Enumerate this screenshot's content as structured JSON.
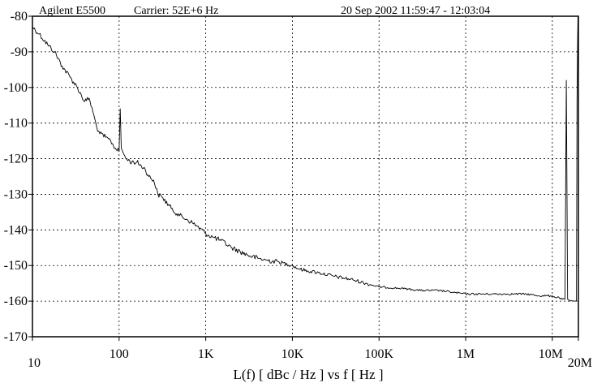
{
  "header": {
    "instrument": "Agilent E5500",
    "carrier": "Carrier: 52E+6 Hz",
    "datetime": "20 Sep 2002  11:59:47 - 12:03:04"
  },
  "chart_data": {
    "type": "line",
    "xlabel": "L(f)  [ dBc / Hz ]  vs  f  [ Hz ]",
    "ylabel": "",
    "x_scale": "log",
    "xlim": [
      10,
      20000000
    ],
    "ylim": [
      -170,
      -80
    ],
    "grid": true,
    "x_ticks": [
      {
        "value": 10,
        "label": "10"
      },
      {
        "value": 100,
        "label": "100"
      },
      {
        "value": 1000,
        "label": "1K"
      },
      {
        "value": 10000,
        "label": "10K"
      },
      {
        "value": 100000,
        "label": "100K"
      },
      {
        "value": 1000000,
        "label": "1M"
      },
      {
        "value": 10000000,
        "label": "10M"
      },
      {
        "value": 20000000,
        "label": "20M"
      }
    ],
    "y_ticks": [
      {
        "value": -80,
        "label": "-80"
      },
      {
        "value": -90,
        "label": "-90"
      },
      {
        "value": -100,
        "label": "-100"
      },
      {
        "value": -110,
        "label": "-110"
      },
      {
        "value": -120,
        "label": "-120"
      },
      {
        "value": -130,
        "label": "-130"
      },
      {
        "value": -140,
        "label": "-140"
      },
      {
        "value": -150,
        "label": "-150"
      },
      {
        "value": -160,
        "label": "-160"
      },
      {
        "value": -170,
        "label": "-170"
      }
    ],
    "series": [
      {
        "color": "#000000",
        "x": [
          10,
          12,
          15,
          18,
          22,
          27,
          33,
          40,
          45,
          50,
          55,
          60,
          70,
          80,
          90,
          100,
          103,
          106,
          110,
          120,
          140,
          160,
          180,
          200,
          220,
          250,
          280,
          320,
          400,
          500,
          600,
          700,
          800,
          1000,
          1200,
          1500,
          2000,
          3000,
          4000,
          5000,
          7000,
          10000,
          12000,
          15000,
          20000,
          30000,
          50000,
          70000,
          100000,
          200000,
          300000,
          500000,
          700000,
          1000000,
          2000000,
          3000000,
          5000000,
          7000000,
          10000000,
          11000000,
          12000000,
          13000000,
          14000000,
          14500000,
          15000000,
          16000000,
          17000000,
          18000000,
          19000000,
          19300000,
          19600000,
          19800000,
          20000000
        ],
        "y": [
          -83,
          -85,
          -88,
          -90,
          -94,
          -97,
          -100,
          -104,
          -103,
          -107,
          -111,
          -113,
          -114,
          -115,
          -117,
          -118,
          -106,
          -117,
          -118,
          -120,
          -121,
          -121,
          -122,
          -123,
          -125,
          -126,
          -130,
          -131,
          -134,
          -136,
          -137,
          -138,
          -139,
          -141,
          -142,
          -143,
          -145,
          -147,
          -148,
          -148.5,
          -149,
          -150,
          -151,
          -151.5,
          -152,
          -153,
          -154,
          -155,
          -156,
          -156.5,
          -157,
          -157,
          -157.5,
          -158,
          -158,
          -158,
          -158,
          -158.5,
          -158.5,
          -159,
          -159,
          -159.5,
          -159.5,
          -98,
          -159.5,
          -160,
          -160,
          -160,
          -160,
          -104,
          -86,
          -80,
          -103
        ]
      }
    ]
  }
}
